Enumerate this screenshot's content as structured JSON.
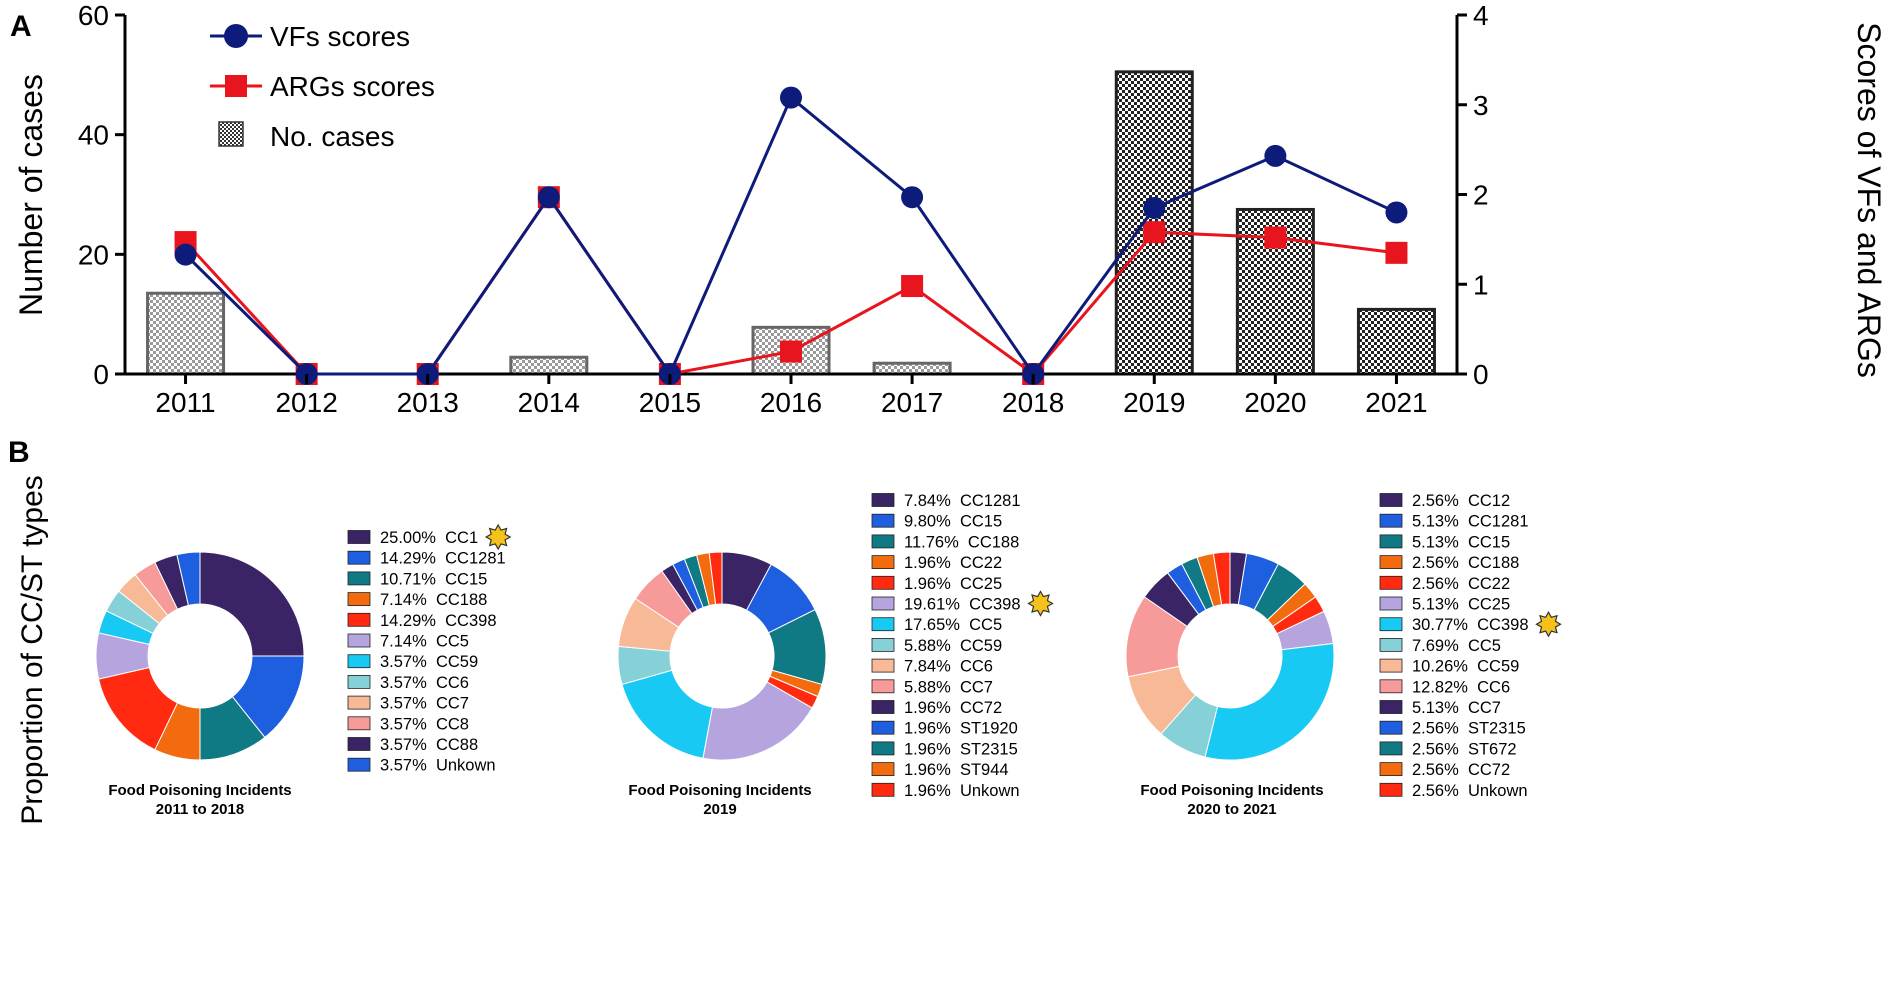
{
  "panel_a": {
    "label": "A",
    "title": "",
    "ylabel_left": "Number of cases",
    "ylabel_right": "Scores of VFs and ARGs",
    "left_ticks": [
      "0",
      "20",
      "40",
      "60"
    ],
    "right_ticks": [
      "0",
      "1",
      "2",
      "3",
      "4"
    ],
    "legend": {
      "vfs": "VFs scores",
      "args": "ARGs scores",
      "cases": "No. cases"
    },
    "colors": {
      "vfs": "#0d1b7a",
      "args": "#e8151e",
      "bar_border": "#555555"
    }
  },
  "panel_b": {
    "label": "B",
    "ylabel": "Proportion of CC/ST types"
  },
  "chart_data": [
    {
      "type": "bar+line",
      "categories": [
        "2011",
        "2012",
        "2013",
        "2014",
        "2015",
        "2016",
        "2017",
        "2018",
        "2019",
        "2020",
        "2021"
      ],
      "bars": {
        "name": "No. cases",
        "axis": "left",
        "values": [
          13.5,
          0,
          0,
          2.8,
          0,
          7.8,
          1.8,
          0,
          50.5,
          27.5,
          10.8
        ]
      },
      "series": [
        {
          "name": "VFs scores",
          "axis": "right",
          "values": [
            1.33,
            0,
            0,
            1.97,
            0,
            3.08,
            1.97,
            0,
            1.85,
            2.43,
            1.8
          ]
        },
        {
          "name": "ARGs scores",
          "axis": "right",
          "values": [
            1.47,
            0,
            0,
            1.97,
            0,
            0.25,
            0.98,
            0,
            1.58,
            1.52,
            1.35
          ]
        }
      ],
      "ylim_left": [
        0,
        60
      ],
      "ylim_right": [
        0,
        4
      ]
    },
    {
      "type": "pie",
      "title_line1": "Food Poisoning Incidents",
      "title_line2": "2011 to 2018",
      "highlight_index": 0,
      "slices": [
        {
          "label": "25.00%  CC1",
          "value": 25.0,
          "color": "#3a2465"
        },
        {
          "label": "14.29%  CC1281",
          "value": 14.29,
          "color": "#1e5fe0"
        },
        {
          "label": "10.71%  CC15",
          "value": 10.71,
          "color": "#0f7a84"
        },
        {
          "label": "7.14%  CC188",
          "value": 7.14,
          "color": "#f26b0f"
        },
        {
          "label": "14.29%  CC398",
          "value": 14.29,
          "color": "#ff2a10"
        },
        {
          "label": "7.14%  CC5",
          "value": 7.14,
          "color": "#b6a4de"
        },
        {
          "label": "3.57%  CC59",
          "value": 3.57,
          "color": "#17c9f3"
        },
        {
          "label": "3.57%  CC6",
          "value": 3.57,
          "color": "#86d0d8"
        },
        {
          "label": "3.57%  CC7",
          "value": 3.57,
          "color": "#f8b996"
        },
        {
          "label": "3.57%  CC8",
          "value": 3.57,
          "color": "#f79a9a"
        },
        {
          "label": "3.57%  CC88",
          "value": 3.57,
          "color": "#3a2465"
        },
        {
          "label": "3.57%  Unkown",
          "value": 3.57,
          "color": "#1e5fe0"
        }
      ]
    },
    {
      "type": "pie",
      "title_line1": "Food Poisoning Incidents",
      "title_line2": "2019",
      "highlight_index": 5,
      "slices": [
        {
          "label": "7.84%  CC1281",
          "value": 7.84,
          "color": "#3a2465"
        },
        {
          "label": "9.80%  CC15",
          "value": 9.8,
          "color": "#1e5fe0"
        },
        {
          "label": "11.76%  CC188",
          "value": 11.76,
          "color": "#0f7a84"
        },
        {
          "label": "1.96%  CC22",
          "value": 1.96,
          "color": "#f26b0f"
        },
        {
          "label": "1.96%  CC25",
          "value": 1.96,
          "color": "#ff2a10"
        },
        {
          "label": "19.61%  CC398",
          "value": 19.61,
          "color": "#b6a4de"
        },
        {
          "label": "17.65%  CC5",
          "value": 17.65,
          "color": "#17c9f3"
        },
        {
          "label": "5.88%  CC59",
          "value": 5.88,
          "color": "#86d0d8"
        },
        {
          "label": "7.84%  CC6",
          "value": 7.84,
          "color": "#f8b996"
        },
        {
          "label": "5.88%  CC7",
          "value": 5.88,
          "color": "#f79a9a"
        },
        {
          "label": "1.96%  CC72",
          "value": 1.96,
          "color": "#3a2465"
        },
        {
          "label": "1.96%  ST1920",
          "value": 1.96,
          "color": "#1e5fe0"
        },
        {
          "label": "1.96%  ST2315",
          "value": 1.96,
          "color": "#0f7a84"
        },
        {
          "label": "1.96%  ST944",
          "value": 1.96,
          "color": "#f26b0f"
        },
        {
          "label": "1.96%  Unkown",
          "value": 1.96,
          "color": "#ff2a10"
        }
      ]
    },
    {
      "type": "pie",
      "title_line1": "Food Poisoning Incidents",
      "title_line2": "2020 to 2021",
      "highlight_index": 6,
      "slices": [
        {
          "label": "2.56%  CC12",
          "value": 2.56,
          "color": "#3a2465"
        },
        {
          "label": "5.13%  CC1281",
          "value": 5.13,
          "color": "#1e5fe0"
        },
        {
          "label": "5.13%  CC15",
          "value": 5.13,
          "color": "#0f7a84"
        },
        {
          "label": "2.56%  CC188",
          "value": 2.56,
          "color": "#f26b0f"
        },
        {
          "label": "2.56%  CC22",
          "value": 2.56,
          "color": "#ff2a10"
        },
        {
          "label": "5.13%  CC25",
          "value": 5.13,
          "color": "#b6a4de"
        },
        {
          "label": "30.77%  CC398",
          "value": 30.77,
          "color": "#17c9f3"
        },
        {
          "label": "7.69%  CC5",
          "value": 7.69,
          "color": "#86d0d8"
        },
        {
          "label": "10.26%  CC59",
          "value": 10.26,
          "color": "#f8b996"
        },
        {
          "label": "12.82%  CC6",
          "value": 12.82,
          "color": "#f79a9a"
        },
        {
          "label": "5.13%  CC7",
          "value": 5.13,
          "color": "#3a2465"
        },
        {
          "label": "2.56%  ST2315",
          "value": 2.56,
          "color": "#1e5fe0"
        },
        {
          "label": "2.56%  ST672",
          "value": 2.56,
          "color": "#0f7a84"
        },
        {
          "label": "2.56%  CC72",
          "value": 2.56,
          "color": "#f26b0f"
        },
        {
          "label": "2.56%  Unkown",
          "value": 2.56,
          "color": "#ff2a10"
        }
      ]
    }
  ]
}
